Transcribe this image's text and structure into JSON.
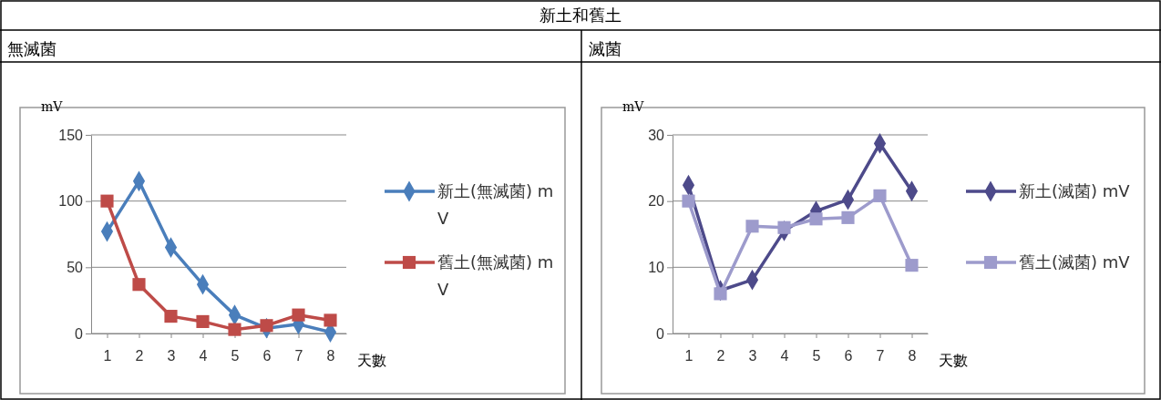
{
  "chart_data": [
    {
      "type": "line",
      "title": "無滅菌",
      "annotations": [
        "新土和舊土"
      ],
      "xlabel": "天數",
      "ylabel": "mV",
      "categories": [
        "1",
        "2",
        "3",
        "4",
        "5",
        "6",
        "7",
        "8"
      ],
      "ylim": [
        0,
        150
      ],
      "yticks": [
        0,
        50,
        100,
        150
      ],
      "grid": "y",
      "legend": "right",
      "series": [
        {
          "name": "新土(無滅菌) mV",
          "color": "#4a7ebb",
          "marker": "diamond",
          "values": [
            77,
            115,
            65,
            37,
            14,
            4,
            7,
            1
          ]
        },
        {
          "name": "舊土(無滅菌) mV",
          "color": "#be4b48",
          "marker": "square",
          "values": [
            100,
            37,
            13,
            9,
            3,
            6,
            14,
            10
          ]
        }
      ]
    },
    {
      "type": "line",
      "title": "滅菌",
      "xlabel": "天數",
      "ylabel": "mV",
      "categories": [
        "1",
        "2",
        "3",
        "4",
        "5",
        "6",
        "7",
        "8"
      ],
      "ylim": [
        0,
        30
      ],
      "yticks": [
        0,
        10,
        20,
        30
      ],
      "grid": "y",
      "legend": "right",
      "series": [
        {
          "name": "新土(滅菌) mV",
          "color": "#4d4a8a",
          "marker": "diamond",
          "values": [
            22.4,
            6.5,
            8.1,
            15.5,
            18.5,
            20.2,
            28.7,
            21.5
          ]
        },
        {
          "name": "舊土(滅菌) mV",
          "color": "#9d9bcc",
          "marker": "square",
          "values": [
            20,
            6,
            16.2,
            16,
            17.3,
            17.5,
            20.8,
            10.3
          ]
        }
      ]
    }
  ]
}
